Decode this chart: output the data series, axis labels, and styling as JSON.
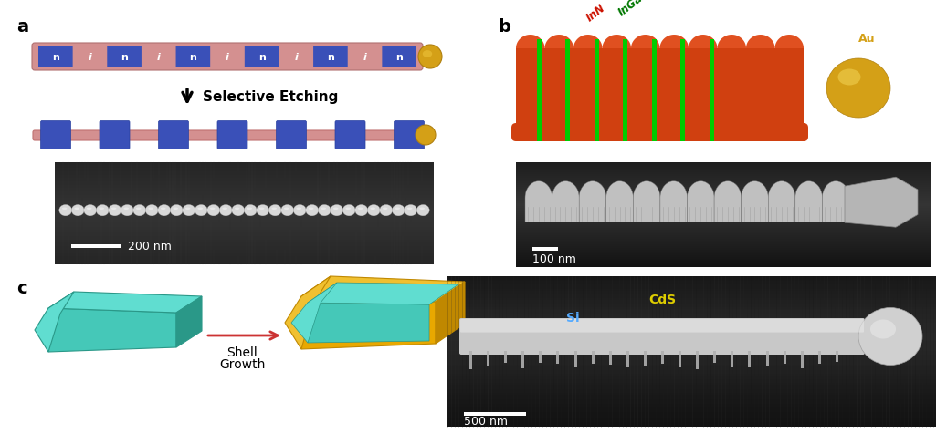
{
  "fig_width": 10.37,
  "fig_height": 4.75,
  "bg_color": "#ffffff",
  "panel_a_label": "a",
  "panel_b_label": "b",
  "panel_c_label": "c",
  "nanowire_pink": "#d49090",
  "nanowire_blue": "#3a50b8",
  "gold_color": "#d4a017",
  "gold_dark": "#b08010",
  "arrow_text": "Selective Etching",
  "wire1_labels": [
    "n",
    "i",
    "n",
    "i",
    "n",
    "i",
    "n",
    "i",
    "n",
    "i",
    "n"
  ],
  "inn_label": "InN",
  "ingan_label": "InGaN",
  "au_label": "Au",
  "scale_200nm": "200 nm",
  "scale_100nm": "100 nm",
  "scale_500nm": "500 nm",
  "teal_color": "#45c8b8",
  "teal_light": "#60ddd0",
  "teal_dark": "#2a9888",
  "shell_color": "#e8a800",
  "shell_light": "#f0c030",
  "shell_dark": "#c08800",
  "arrow_color": "#cc3333",
  "shell_text1": "Shell",
  "shell_text2": "Growth",
  "si_label_color": "#55aaff",
  "cds_label_color": "#ddcc00",
  "si_label": "Si",
  "cds_label": "CdS",
  "orange_red": "#d04010",
  "orange_red_light": "#e05020",
  "green_line": "#00cc00"
}
